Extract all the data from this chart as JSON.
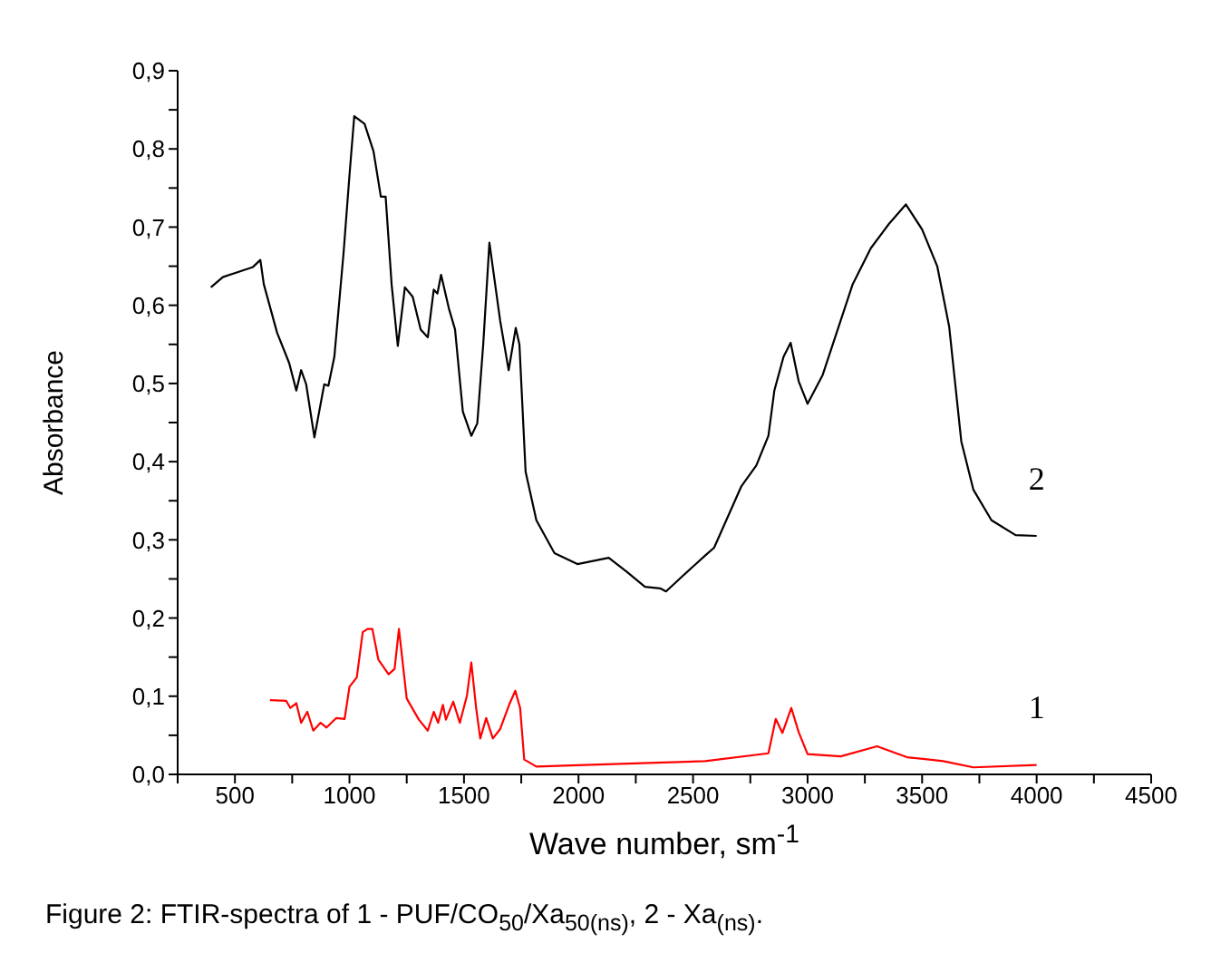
{
  "chart_data": {
    "type": "line",
    "xlabel": "Wave number,  sm$^{-1}$",
    "ylabel": "Absorbance",
    "xlim": [
      250,
      4500
    ],
    "xticks": [
      {
        "value": 250,
        "label": null
      },
      500,
      {
        "value": 750,
        "label": null
      },
      1000,
      {
        "value": 1250,
        "label": null
      },
      1500,
      {
        "value": 1750,
        "label": null
      },
      2000,
      {
        "value": 2250,
        "label": null
      },
      2500,
      {
        "value": 2750,
        "label": null
      },
      3000,
      {
        "value": 3250,
        "label": null
      },
      3500,
      {
        "value": 3750,
        "label": null
      },
      4000,
      {
        "value": 4250,
        "label": null
      },
      4500
    ],
    "ylim": [
      0,
      0.9
    ],
    "yticks": [
      {
        "value": 0,
        "label": "0,0"
      },
      {
        "value": 0.05,
        "label": null
      },
      {
        "value": 0.1,
        "label": "0,1"
      },
      {
        "value": 0.15,
        "label": null
      },
      {
        "value": 0.2,
        "label": "0,2"
      },
      {
        "value": 0.25,
        "label": null
      },
      {
        "value": 0.3,
        "label": "0,3"
      },
      {
        "value": 0.35,
        "label": null
      },
      {
        "value": 0.4,
        "label": "0,4"
      },
      {
        "value": 0.45,
        "label": null
      },
      {
        "value": 0.5,
        "label": "0,5"
      },
      {
        "value": 0.55,
        "label": null
      },
      {
        "value": 0.6,
        "label": "0,6"
      },
      {
        "value": 0.65,
        "label": null
      },
      {
        "value": 0.7,
        "label": "0,7"
      },
      {
        "value": 0.75,
        "label": null
      },
      {
        "value": 0.8,
        "label": "0,8"
      },
      {
        "value": 0.85,
        "label": null
      },
      {
        "value": 0.9,
        "label": "0,9"
      }
    ],
    "marker": "none",
    "line_style": "solid",
    "series": [
      {
        "name": "1",
        "color": "#ff0000",
        "x": [
          653,
          724,
          742,
          768,
          789,
          816,
          842,
          874,
          900,
          942,
          979,
          1000,
          1032,
          1058,
          1079,
          1100,
          1126,
          1171,
          1197,
          1216,
          1250,
          1303,
          1342,
          1368,
          1387,
          1408,
          1421,
          1453,
          1482,
          1513,
          1532,
          1553,
          1571,
          1597,
          1626,
          1658,
          1697,
          1724,
          1745,
          1763,
          1816,
          2026,
          2553,
          2829,
          2861,
          2890,
          2929,
          2961,
          3000,
          3145,
          3303,
          3434,
          3592,
          3724,
          4000
        ],
        "values": [
          0.095,
          0.094,
          0.085,
          0.091,
          0.066,
          0.08,
          0.056,
          0.066,
          0.06,
          0.072,
          0.071,
          0.112,
          0.124,
          0.182,
          0.186,
          0.186,
          0.147,
          0.128,
          0.135,
          0.186,
          0.097,
          0.07,
          0.056,
          0.08,
          0.066,
          0.089,
          0.07,
          0.093,
          0.066,
          0.101,
          0.143,
          0.085,
          0.046,
          0.072,
          0.046,
          0.058,
          0.089,
          0.107,
          0.085,
          0.019,
          0.01,
          0.012,
          0.017,
          0.027,
          0.071,
          0.053,
          0.085,
          0.054,
          0.026,
          0.023,
          0.036,
          0.022,
          0.017,
          0.009,
          0.012
        ]
      },
      {
        "name": "2",
        "color": "#000000",
        "x": [
          395,
          447,
          579,
          611,
          626,
          684,
          737,
          768,
          789,
          811,
          847,
          890,
          908,
          934,
          974,
          1000,
          1021,
          1066,
          1105,
          1137,
          1158,
          1184,
          1211,
          1242,
          1276,
          1311,
          1342,
          1368,
          1384,
          1400,
          1434,
          1461,
          1495,
          1532,
          1558,
          1584,
          1611,
          1658,
          1695,
          1726,
          1742,
          1769,
          1816,
          1895,
          1995,
          2132,
          2211,
          2290,
          2356,
          2382,
          2448,
          2553,
          2592,
          2710,
          2776,
          2829,
          2855,
          2895,
          2926,
          2961,
          3000,
          3066,
          3197,
          3276,
          3355,
          3429,
          3500,
          3566,
          3618,
          3671,
          3724,
          3803,
          3908,
          4000
        ],
        "values": [
          0.623,
          0.636,
          0.649,
          0.658,
          0.627,
          0.565,
          0.526,
          0.491,
          0.517,
          0.499,
          0.431,
          0.499,
          0.497,
          0.534,
          0.666,
          0.766,
          0.842,
          0.832,
          0.797,
          0.739,
          0.739,
          0.627,
          0.548,
          0.623,
          0.611,
          0.569,
          0.559,
          0.62,
          0.615,
          0.639,
          0.596,
          0.569,
          0.464,
          0.433,
          0.449,
          0.55,
          0.68,
          0.58,
          0.517,
          0.571,
          0.55,
          0.387,
          0.325,
          0.283,
          0.269,
          0.277,
          0.259,
          0.24,
          0.238,
          0.234,
          0.252,
          0.28,
          0.29,
          0.368,
          0.395,
          0.433,
          0.491,
          0.534,
          0.552,
          0.503,
          0.474,
          0.511,
          0.627,
          0.673,
          0.704,
          0.729,
          0.697,
          0.65,
          0.573,
          0.426,
          0.364,
          0.325,
          0.306,
          0.305
        ]
      }
    ],
    "annotations": [
      "Figure 2:  FTIR-spectra of 1 - PUF/CO$_{50}$/Xa$_{50(ns)}$, 2 - Xa$_{(ns)}$."
    ]
  }
}
